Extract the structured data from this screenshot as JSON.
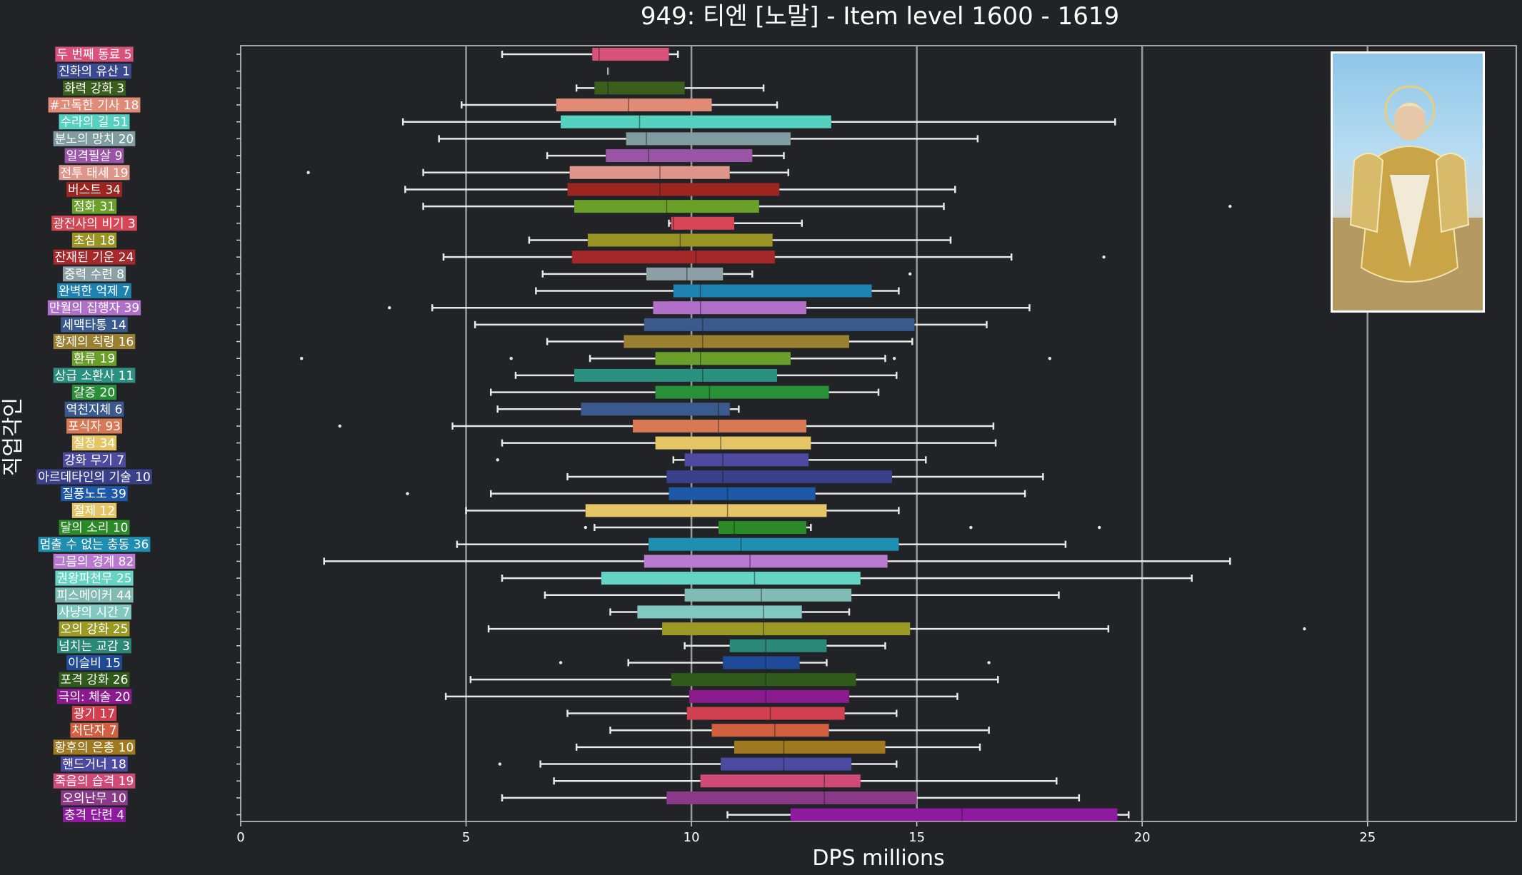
{
  "chart_data": {
    "type": "boxplot",
    "title": "949: 티엔 [노말] - Item level 1600 - 1619",
    "xlabel": "DPS millions",
    "ylabel": "직업각인",
    "xlim": [
      0,
      28.3
    ],
    "xticks": [
      0,
      5,
      10,
      15,
      20,
      25
    ],
    "grid": "vertical at 5, 10, 15, 20, 25",
    "categories": [
      {
        "label": "두 번째 동료 5",
        "color": "#d8527c",
        "min": 5.8,
        "q1": 7.8,
        "median": 7.95,
        "q3": 9.5,
        "max": 9.7,
        "outliers": []
      },
      {
        "label": "진화의 유산 1",
        "color": "#3b4a8e",
        "min": 8.15,
        "q1": 8.15,
        "median": 8.15,
        "q3": 8.15,
        "max": 8.15,
        "outliers": []
      },
      {
        "label": "화력 강화 3",
        "color": "#3a5e1c",
        "min": 7.45,
        "q1": 7.85,
        "median": 8.15,
        "q3": 9.85,
        "max": 11.6,
        "outliers": []
      },
      {
        "label": "#고독한 기사 18",
        "color": "#e08a78",
        "min": 4.9,
        "q1": 7.0,
        "median": 8.6,
        "q3": 10.45,
        "max": 11.9,
        "outliers": []
      },
      {
        "label": "수라의 길 51",
        "color": "#56d1c0",
        "min": 3.6,
        "q1": 7.1,
        "median": 8.85,
        "q3": 13.1,
        "max": 19.4,
        "outliers": []
      },
      {
        "label": "분노의 망치 20",
        "color": "#7f9da0",
        "min": 4.4,
        "q1": 8.55,
        "median": 9.0,
        "q3": 12.2,
        "max": 16.35,
        "outliers": []
      },
      {
        "label": "일격필살 9",
        "color": "#9a55a7",
        "min": 6.8,
        "q1": 8.1,
        "median": 9.05,
        "q3": 11.35,
        "max": 12.05,
        "outliers": []
      },
      {
        "label": "전투 태세 19",
        "color": "#e0958a",
        "min": 4.05,
        "q1": 7.3,
        "median": 9.3,
        "q3": 10.85,
        "max": 12.15,
        "outliers": [
          1.5
        ]
      },
      {
        "label": "버스트 34",
        "color": "#9b2520",
        "min": 3.65,
        "q1": 7.25,
        "median": 9.3,
        "q3": 11.95,
        "max": 15.85,
        "outliers": []
      },
      {
        "label": "점화 31",
        "color": "#6aa02a",
        "min": 4.05,
        "q1": 7.4,
        "median": 9.45,
        "q3": 11.5,
        "max": 15.6,
        "outliers": [
          21.95
        ]
      },
      {
        "label": "광전사의 비기 3",
        "color": "#d84656",
        "min": 9.5,
        "q1": 9.55,
        "median": 9.6,
        "q3": 10.95,
        "max": 12.45,
        "outliers": []
      },
      {
        "label": "초심 18",
        "color": "#9a9425",
        "min": 6.4,
        "q1": 7.7,
        "median": 9.75,
        "q3": 11.8,
        "max": 15.75,
        "outliers": []
      },
      {
        "label": "잔재된 기운 24",
        "color": "#a6282a",
        "min": 4.5,
        "q1": 7.35,
        "median": 10.1,
        "q3": 11.85,
        "max": 17.1,
        "outliers": [
          19.15
        ]
      },
      {
        "label": "중력 수련 8",
        "color": "#8ca0a5",
        "min": 6.7,
        "q1": 9.0,
        "median": 9.9,
        "q3": 10.7,
        "max": 11.35,
        "outliers": [
          14.85
        ]
      },
      {
        "label": "완벽한 억제 7",
        "color": "#1e82b0",
        "min": 6.55,
        "q1": 9.6,
        "median": 10.2,
        "q3": 14.0,
        "max": 14.6,
        "outliers": []
      },
      {
        "label": "만월의 집행자 39",
        "color": "#b070c8",
        "min": 4.25,
        "q1": 9.15,
        "median": 10.2,
        "q3": 12.55,
        "max": 17.5,
        "outliers": [
          3.3
        ]
      },
      {
        "label": "세맥타통 14",
        "color": "#3a5a8e",
        "min": 5.2,
        "q1": 8.95,
        "median": 10.25,
        "q3": 14.95,
        "max": 16.55,
        "outliers": []
      },
      {
        "label": "황제의 칙령 16",
        "color": "#9a8030",
        "min": 6.8,
        "q1": 8.5,
        "median": 10.25,
        "q3": 13.5,
        "max": 14.9,
        "outliers": []
      },
      {
        "label": "환류 19",
        "color": "#6aa02a",
        "min": 7.75,
        "q1": 9.2,
        "median": 10.2,
        "q3": 12.2,
        "max": 14.3,
        "outliers": [
          1.35,
          6.0,
          14.5,
          17.95
        ]
      },
      {
        "label": "상급 소환사 11",
        "color": "#2a9080",
        "min": 6.1,
        "q1": 7.4,
        "median": 10.25,
        "q3": 11.9,
        "max": 14.55,
        "outliers": []
      },
      {
        "label": "갈증 20",
        "color": "#2a9038",
        "min": 5.55,
        "q1": 9.2,
        "median": 10.4,
        "q3": 13.05,
        "max": 14.15,
        "outliers": []
      },
      {
        "label": "역천지체 6",
        "color": "#3a5a8e",
        "min": 5.7,
        "q1": 7.55,
        "median": 10.6,
        "q3": 10.85,
        "max": 11.05,
        "outliers": []
      },
      {
        "label": "포식자 93",
        "color": "#d87855",
        "min": 4.7,
        "q1": 8.7,
        "median": 10.6,
        "q3": 12.55,
        "max": 16.7,
        "outliers": [
          2.2
        ]
      },
      {
        "label": "절정 34",
        "color": "#e5c566",
        "min": 5.8,
        "q1": 9.2,
        "median": 10.65,
        "q3": 12.65,
        "max": 16.75,
        "outliers": []
      },
      {
        "label": "강화 무기 7",
        "color": "#4e4aa0",
        "min": 9.6,
        "q1": 9.85,
        "median": 10.7,
        "q3": 12.6,
        "max": 15.2,
        "outliers": [
          5.7
        ]
      },
      {
        "label": "아르데타인의 기술 10",
        "color": "#3a3f8a",
        "min": 7.25,
        "q1": 9.45,
        "median": 10.7,
        "q3": 14.45,
        "max": 17.8,
        "outliers": []
      },
      {
        "label": "질풍노도 39",
        "color": "#1e58a8",
        "min": 5.55,
        "q1": 9.5,
        "median": 10.8,
        "q3": 12.75,
        "max": 17.4,
        "outliers": [
          3.7
        ]
      },
      {
        "label": "절제 12",
        "color": "#e5c566",
        "min": 5.0,
        "q1": 7.65,
        "median": 10.8,
        "q3": 13.0,
        "max": 14.6,
        "outliers": []
      },
      {
        "label": "달의 소리 10",
        "color": "#2a8a28",
        "min": 7.85,
        "q1": 10.6,
        "median": 10.95,
        "q3": 12.55,
        "max": 12.65,
        "outliers": [
          7.65,
          16.2,
          19.05
        ]
      },
      {
        "label": "멈출 수 없는 충동 36",
        "color": "#1e8fb0",
        "min": 4.8,
        "q1": 9.05,
        "median": 11.1,
        "q3": 14.6,
        "max": 18.3,
        "outliers": []
      },
      {
        "label": "그믐의 경계 82",
        "color": "#b87ad0",
        "min": 1.85,
        "q1": 8.95,
        "median": 11.3,
        "q3": 14.35,
        "max": 21.95,
        "outliers": []
      },
      {
        "label": "권왕파천무 25",
        "color": "#66d4c4",
        "min": 5.8,
        "q1": 8.0,
        "median": 11.4,
        "q3": 13.75,
        "max": 21.1,
        "outliers": []
      },
      {
        "label": "피스메이커 44",
        "color": "#80bcb4",
        "min": 6.75,
        "q1": 9.85,
        "median": 11.55,
        "q3": 13.55,
        "max": 18.15,
        "outliers": []
      },
      {
        "label": "사냥의 시간 7",
        "color": "#80c8c0",
        "min": 8.2,
        "q1": 8.8,
        "median": 11.6,
        "q3": 12.45,
        "max": 13.5,
        "outliers": []
      },
      {
        "label": "오의 강화 25",
        "color": "#9a9a25",
        "min": 5.5,
        "q1": 9.35,
        "median": 11.6,
        "q3": 14.85,
        "max": 19.25,
        "outliers": [
          23.6
        ]
      },
      {
        "label": "넘치는 교감 3",
        "color": "#2a8878",
        "min": 9.85,
        "q1": 10.85,
        "median": 11.65,
        "q3": 13.0,
        "max": 14.3,
        "outliers": []
      },
      {
        "label": "이슬비 15",
        "color": "#1e4a98",
        "min": 8.6,
        "q1": 10.7,
        "median": 11.65,
        "q3": 12.4,
        "max": 13.0,
        "outliers": [
          7.1,
          16.6
        ]
      },
      {
        "label": "포격 강화 26",
        "color": "#2f5a1c",
        "min": 5.1,
        "q1": 9.55,
        "median": 11.65,
        "q3": 13.65,
        "max": 16.8,
        "outliers": []
      },
      {
        "label": "극의: 체술 20",
        "color": "#8a1a8e",
        "min": 4.55,
        "q1": 9.95,
        "median": 11.65,
        "q3": 13.5,
        "max": 15.9,
        "outliers": []
      },
      {
        "label": "광기 17",
        "color": "#d24050",
        "min": 7.25,
        "q1": 9.9,
        "median": 11.75,
        "q3": 13.4,
        "max": 14.55,
        "outliers": []
      },
      {
        "label": "처단자 7",
        "color": "#d06040",
        "min": 8.2,
        "q1": 10.45,
        "median": 11.85,
        "q3": 13.05,
        "max": 16.6,
        "outliers": []
      },
      {
        "label": "황후의 은총 10",
        "color": "#a07820",
        "min": 7.45,
        "q1": 10.95,
        "median": 12.05,
        "q3": 14.3,
        "max": 16.4,
        "outliers": []
      },
      {
        "label": "핸드거너 18",
        "color": "#4a4aa0",
        "min": 6.65,
        "q1": 10.65,
        "median": 12.05,
        "q3": 13.55,
        "max": 14.55,
        "outliers": [
          5.75
        ]
      },
      {
        "label": "죽음의 습격 19",
        "color": "#d04a78",
        "min": 6.95,
        "q1": 10.2,
        "median": 12.95,
        "q3": 13.75,
        "max": 18.1,
        "outliers": []
      },
      {
        "label": "오의난무 10",
        "color": "#8a3a88",
        "min": 5.8,
        "q1": 9.45,
        "median": 12.95,
        "q3": 15.0,
        "max": 18.6,
        "outliers": []
      },
      {
        "label": "충격 단련 4",
        "color": "#8e1aa0",
        "min": 10.8,
        "q1": 12.2,
        "median": 16.0,
        "q3": 19.45,
        "max": 19.7,
        "outliers": []
      }
    ]
  }
}
